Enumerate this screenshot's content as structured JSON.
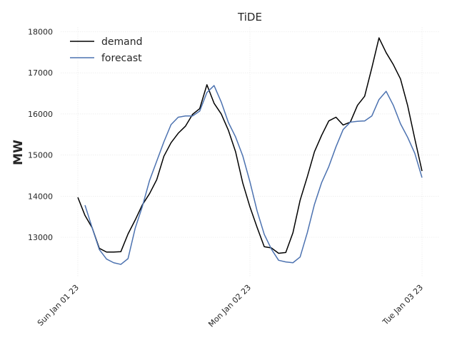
{
  "chart_data": {
    "type": "line",
    "title": "TiDE",
    "xlabel": "",
    "ylabel": "MW",
    "xlim": [
      0,
      48
    ],
    "ylim": [
      12050,
      18100
    ],
    "grid": true,
    "legend_position": "top-left",
    "x_ticks": [
      {
        "x": 0,
        "label": "Sun Jan 01 23"
      },
      {
        "x": 24,
        "label": "Mon Jan 02 23"
      },
      {
        "x": 48,
        "label": "Tue Jan 03 23"
      }
    ],
    "y_ticks": [
      {
        "y": 13000,
        "label": "13000"
      },
      {
        "y": 14000,
        "label": "14000"
      },
      {
        "y": 15000,
        "label": "15000"
      },
      {
        "y": 16000,
        "label": "16000"
      },
      {
        "y": 17000,
        "label": "17000"
      },
      {
        "y": 18000,
        "label": "18000"
      }
    ],
    "series": [
      {
        "name": "demand",
        "color": "#000000",
        "x": [
          0,
          1,
          2,
          3,
          4,
          5,
          6,
          7,
          8,
          9,
          10,
          11,
          12,
          13,
          14,
          15,
          16,
          17,
          18,
          19,
          20,
          21,
          22,
          23,
          24,
          25,
          26,
          27,
          28,
          29,
          30,
          31,
          32,
          33,
          34,
          35,
          36,
          37,
          38,
          39,
          40,
          41,
          42,
          43,
          44,
          45,
          46,
          47,
          48
        ],
        "values": [
          13970,
          13530,
          13230,
          12730,
          12640,
          12640,
          12650,
          13080,
          13420,
          13790,
          14060,
          14400,
          14970,
          15300,
          15530,
          15700,
          15990,
          16130,
          16710,
          16260,
          16000,
          15600,
          15080,
          14320,
          13740,
          13240,
          12770,
          12740,
          12610,
          12630,
          13110,
          13900,
          14470,
          15080,
          15480,
          15830,
          15920,
          15730,
          15800,
          16210,
          16430,
          17120,
          17850,
          17490,
          17200,
          16850,
          16200,
          15390,
          14610
        ]
      },
      {
        "name": "forecast",
        "color": "#4c72b0",
        "x": [
          1,
          2,
          3,
          4,
          5,
          6,
          7,
          8,
          9,
          10,
          11,
          12,
          13,
          14,
          15,
          16,
          17,
          18,
          19,
          20,
          21,
          22,
          23,
          24,
          25,
          26,
          27,
          28,
          29,
          30,
          31,
          32,
          33,
          34,
          35,
          36,
          37,
          38,
          39,
          40,
          41,
          42,
          43,
          44,
          45,
          46,
          47,
          48
        ],
        "values": [
          13780,
          13230,
          12700,
          12470,
          12380,
          12340,
          12480,
          13220,
          13750,
          14380,
          14850,
          15320,
          15740,
          15920,
          15950,
          15950,
          16070,
          16520,
          16690,
          16290,
          15790,
          15440,
          14980,
          14350,
          13640,
          13070,
          12710,
          12440,
          12400,
          12380,
          12520,
          13110,
          13800,
          14330,
          14720,
          15200,
          15620,
          15800,
          15820,
          15830,
          15950,
          16350,
          16550,
          16210,
          15760,
          15430,
          15040,
          14450
        ]
      }
    ]
  }
}
